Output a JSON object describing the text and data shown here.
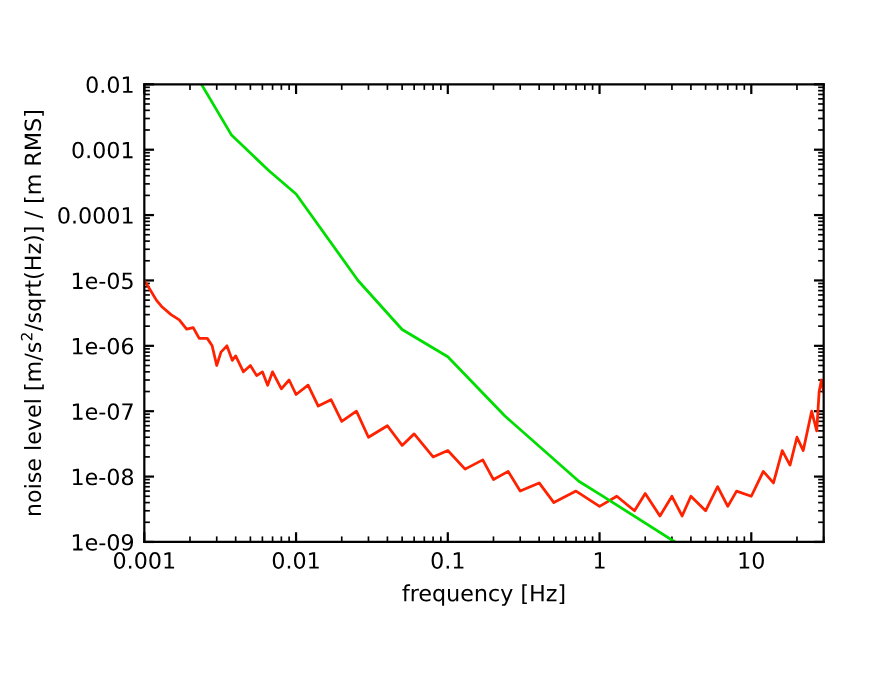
{
  "chart_data": {
    "type": "line",
    "xlabel": "frequency [Hz]",
    "ylabel": "noise level [m/s$^{2}$/sqrt(Hz)] / [m RMS]",
    "log": "xy",
    "xlim": [
      0.001,
      30
    ],
    "ylim": [
      1e-09,
      0.01
    ],
    "xticks": [
      {
        "value": 0.001,
        "label": "0.001"
      },
      {
        "value": 0.01,
        "label": "0.01"
      },
      {
        "value": 0.1,
        "label": "0.1"
      },
      {
        "value": 1,
        "label": "1"
      },
      {
        "value": 10,
        "label": "10"
      }
    ],
    "yticks": [
      {
        "value": 1e-09,
        "label": "1e-09"
      },
      {
        "value": 1e-08,
        "label": "1e-08"
      },
      {
        "value": 1e-07,
        "label": "1e-07"
      },
      {
        "value": 1e-06,
        "label": "1e-06"
      },
      {
        "value": 1e-05,
        "label": "1e-05"
      },
      {
        "value": 0.0001,
        "label": "0.0001"
      },
      {
        "value": 0.001,
        "label": "0.001"
      },
      {
        "value": 0.01,
        "label": "0.01"
      }
    ],
    "grid": false,
    "legend": false,
    "marker": "none",
    "line_style": "solid",
    "series": [
      {
        "color": "#ff2200",
        "x": [
          0.001,
          0.0011,
          0.0012,
          0.0013,
          0.0015,
          0.0017,
          0.0019,
          0.0021,
          0.0023,
          0.0026,
          0.0028,
          0.003,
          0.0032,
          0.0035,
          0.0038,
          0.004,
          0.0045,
          0.005,
          0.0055,
          0.006,
          0.0065,
          0.007,
          0.008,
          0.009,
          0.01,
          0.012,
          0.014,
          0.017,
          0.02,
          0.025,
          0.03,
          0.04,
          0.05,
          0.06,
          0.08,
          0.1,
          0.13,
          0.17,
          0.2,
          0.25,
          0.3,
          0.4,
          0.5,
          0.7,
          1,
          1.3,
          1.7,
          2,
          2.5,
          3,
          3.5,
          4,
          5,
          6,
          7,
          8,
          10,
          12,
          14,
          16,
          18,
          20,
          22,
          25,
          27,
          28,
          29,
          30
        ],
        "values": [
          1e-05,
          7e-06,
          5e-06,
          4e-06,
          3e-06,
          2.5e-06,
          1.8e-06,
          1.9e-06,
          1.3e-06,
          1.3e-06,
          1e-06,
          5e-07,
          8e-07,
          1e-06,
          6e-07,
          7e-07,
          4e-07,
          5e-07,
          3.5e-07,
          4e-07,
          2.5e-07,
          4e-07,
          2.2e-07,
          3e-07,
          1.8e-07,
          2.5e-07,
          1.2e-07,
          1.5e-07,
          7e-08,
          1e-07,
          4e-08,
          6e-08,
          3e-08,
          4.5e-08,
          2e-08,
          2.5e-08,
          1.3e-08,
          1.8e-08,
          9e-09,
          1.2e-08,
          6e-09,
          8e-09,
          4e-09,
          6e-09,
          3.5e-09,
          5e-09,
          3e-09,
          5.5e-09,
          2.5e-09,
          5e-09,
          2.5e-09,
          5e-09,
          3e-09,
          7e-09,
          3.5e-09,
          6e-09,
          5e-09,
          1.2e-08,
          8e-09,
          2.5e-08,
          1.5e-08,
          4e-08,
          2.5e-08,
          1e-07,
          5e-08,
          2e-07,
          3e-07,
          2e-07
        ]
      },
      {
        "color": "#00dd00",
        "x": [
          0.00238,
          0.00374,
          0.0066,
          0.01,
          0.0256,
          0.05,
          0.1,
          0.237,
          0.73,
          1,
          3.14
        ],
        "values": [
          0.01,
          0.0017,
          0.00048,
          0.00021,
          1e-05,
          1.78e-06,
          6.8e-07,
          8.5e-08,
          8.5e-09,
          5.4e-09,
          1e-09
        ]
      }
    ]
  }
}
